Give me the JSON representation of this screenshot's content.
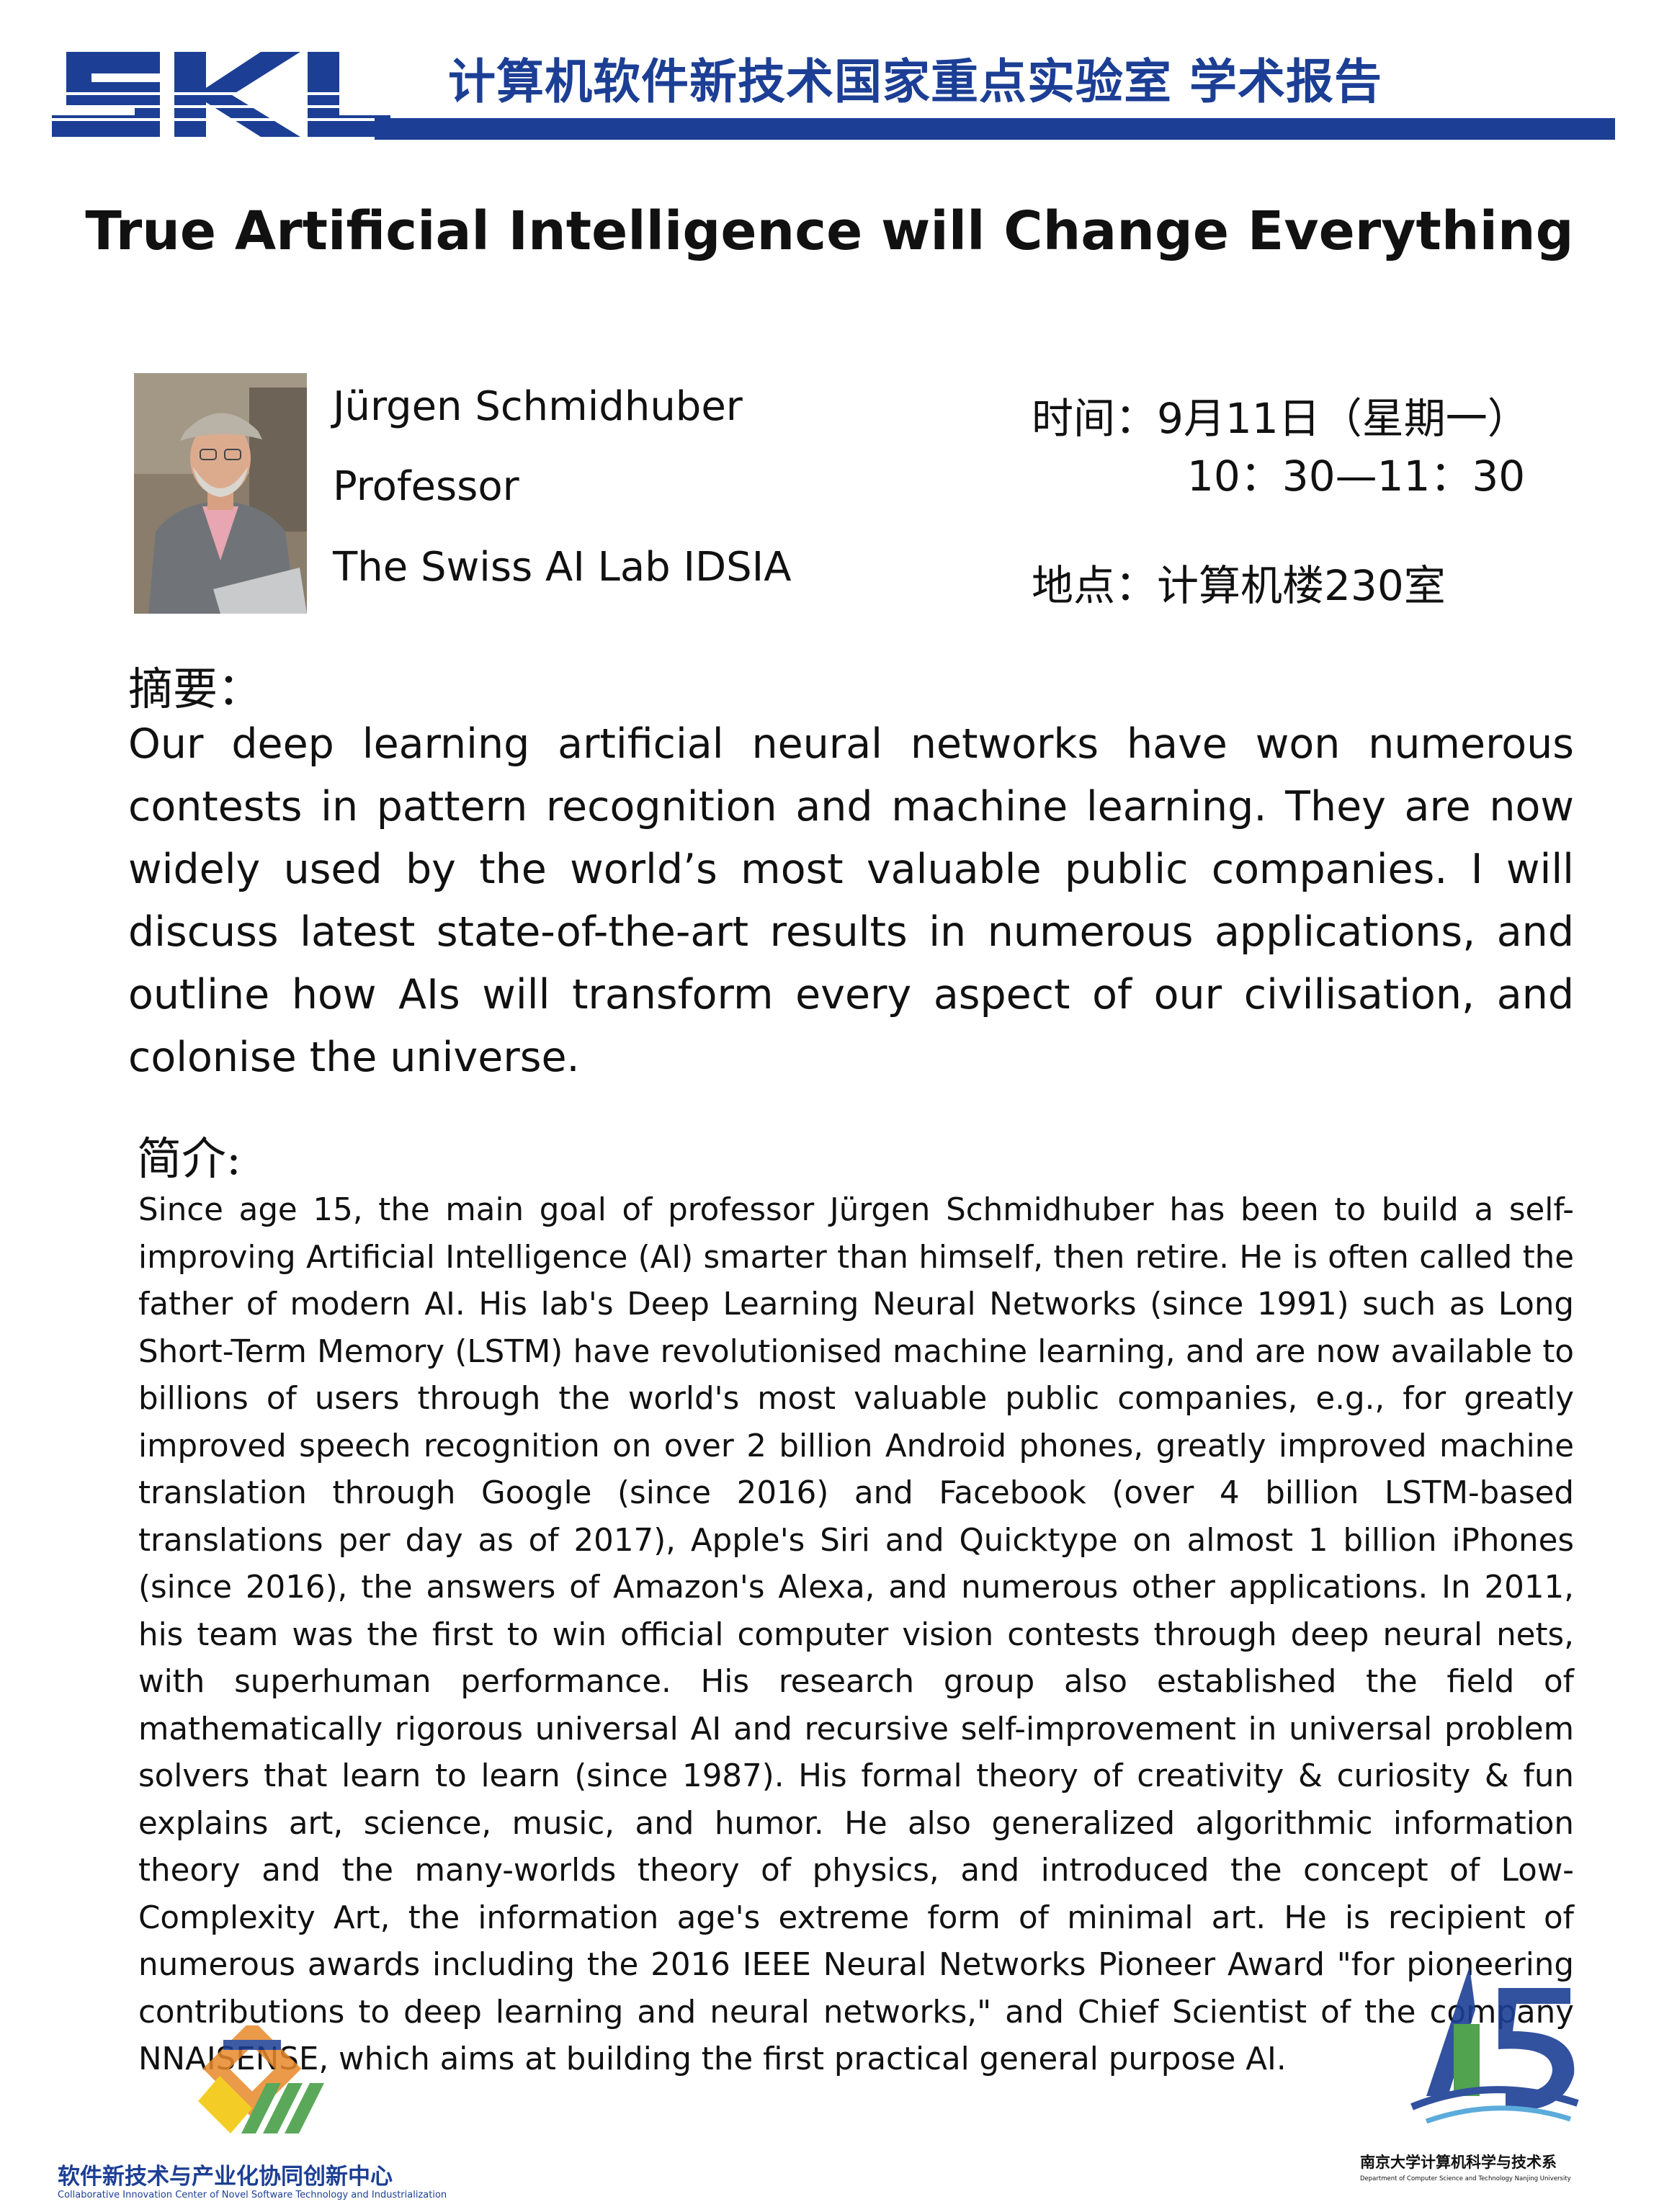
{
  "header": {
    "logo_text": "SKL",
    "title": "计算机软件新技术国家重点实验室 学术报告"
  },
  "talk": {
    "title": "True Artificial Intelligence will Change Everything"
  },
  "speaker": {
    "name": "Jürgen Schmidhuber",
    "position": "Professor",
    "organization": "The Swiss AI Lab IDSIA"
  },
  "event": {
    "time_label": "时间：",
    "date": "9月11日（星期一）",
    "time_range": "10：30—11：30",
    "place_label": "地点：",
    "place": "计算机楼230室"
  },
  "abstract": {
    "heading": "摘要：",
    "text": "Our deep learning artificial neural networks have won numerous contests in pattern recognition and machine learning. They are now widely used by the world’s most valuable public companies. I will discuss latest state-of-the-art results in numerous applications, and outline how AIs will transform every aspect of our civilisation, and colonise the universe."
  },
  "bio": {
    "heading": "简介:",
    "text": "Since age 15, the main goal of professor Jürgen Schmidhuber has been to build a self-improving Artificial Intelligence (AI) smarter than himself, then retire. He is often called the father of modern AI. His lab's Deep Learning Neural Networks (since 1991) such as Long Short-Term Memory (LSTM) have revolutionised machine learning, and are now available to billions of users through the world's most valuable public companies, e.g., for greatly improved speech recognition on over 2 billion Android phones, greatly improved machine translation through Google (since 2016) and Facebook (over 4 billion LSTM-based translations per day as of 2017), Apple's Siri and Quicktype on almost 1 billion iPhones (since 2016), the answers of Amazon's Alexa, and numerous other applications. In 2011, his team was the first to win official computer vision contests through deep neural nets, with superhuman performance. His research group also established the field of mathematically rigorous universal AI and recursive self-improvement in universal problem solvers that learn to learn (since 1987). His formal theory of creativity & curiosity & fun explains art, science, music, and humor. He also generalized algorithmic information theory and the many-worlds theory of physics, and introduced the concept of Low-Complexity Art, the information age's extreme form of minimal art. He is recipient of numerous awards including the 2016 IEEE Neural Networks Pioneer Award \"for pioneering contributions to deep learning and neural networks,\" and Chief Scientist of the company NNAISENSE, which aims at building the first practical general purpose AI."
  },
  "footer": {
    "left_org_cn": "软件新技术与产业化协同创新中心",
    "left_org_en": "Collaborative Innovation Center of Novel Software Technology and Industrialization",
    "right_org_cn": "南京大学计算机科学与技术系",
    "right_org_en": "Department of Computer Science and Technology Nanjing University"
  },
  "colors": {
    "brand_blue": "#1c3f95",
    "logo_orange": "#e8892a",
    "logo_green": "#3f9a3e",
    "logo_yellow": "#f2c500"
  },
  "icons": [
    "skl-logo",
    "speaker-photo",
    "collaborative-center-logo",
    "nju-cs-logo"
  ]
}
